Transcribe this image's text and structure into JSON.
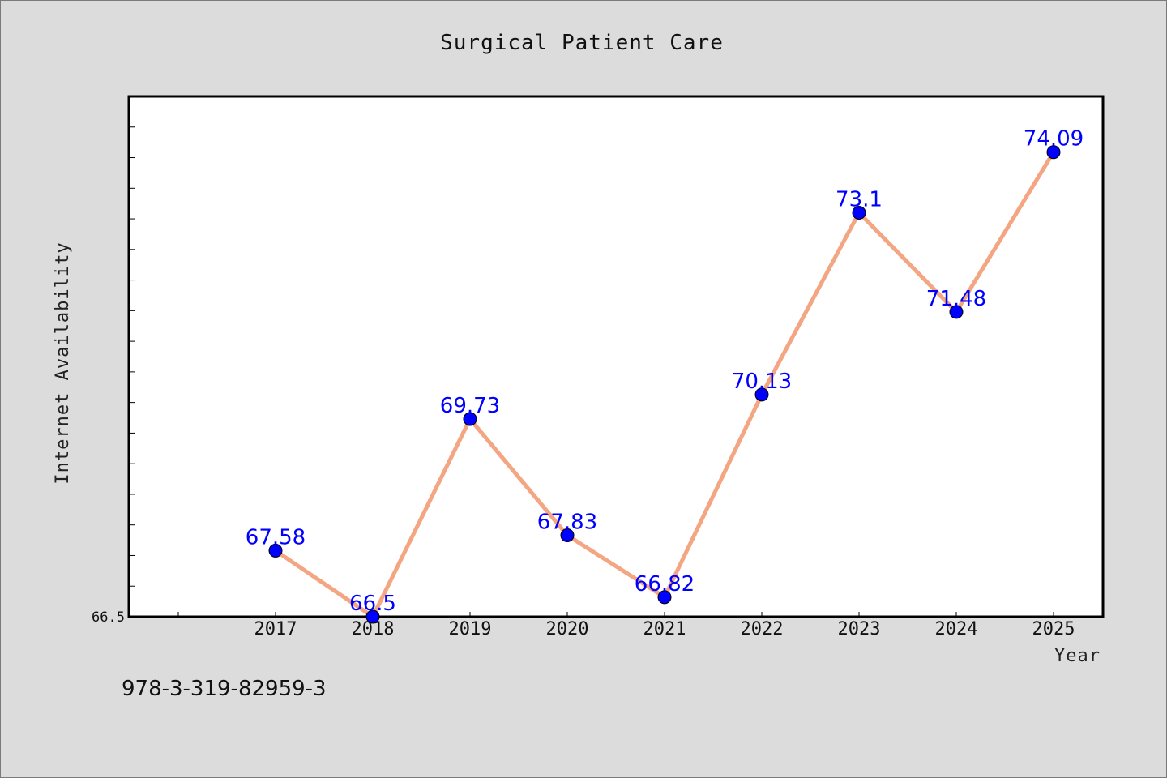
{
  "chart_data": {
    "type": "line",
    "title": "Surgical Patient Care",
    "xlabel": "Year",
    "ylabel": "Internet Availability",
    "categories": [
      "2017",
      "2018",
      "2019",
      "2020",
      "2021",
      "2022",
      "2023",
      "2024",
      "2025"
    ],
    "series": [
      {
        "values": [
          67.58,
          66.5,
          69.73,
          67.83,
          66.82,
          70.13,
          73.1,
          71.48,
          74.09
        ],
        "labels": [
          "67.58",
          "66.5",
          "69.73",
          "67.83",
          "66.82",
          "70.13",
          "73.1",
          "71.48",
          "74.09"
        ],
        "line_color": "#f4a582",
        "marker_color": "#0000ff"
      }
    ],
    "y_tick_labels": [
      "66.5"
    ],
    "ylim": [
      66.5,
      75.0
    ],
    "grid": false,
    "legend": "none"
  },
  "footer": {
    "isbn": "978-3-319-82959-3"
  }
}
